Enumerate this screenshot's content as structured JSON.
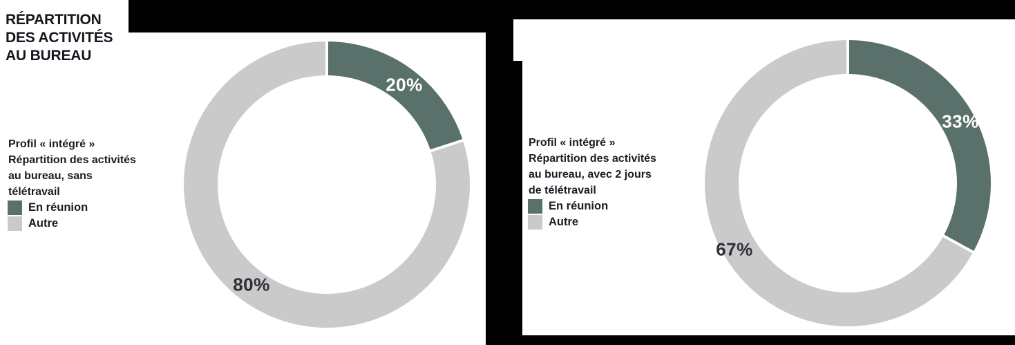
{
  "header": {
    "title_lines": [
      "RÉPARTITION",
      "DES ACTIVITÉS",
      "AU BUREAU"
    ]
  },
  "colors": {
    "meeting": "#59716A",
    "other": "#CACACA",
    "page_background": "#000000",
    "panel_background": "#FFFFFF",
    "heading_text": "#15151E",
    "caption_text": "#1B1B25",
    "value_label_light": "#FFFFFF",
    "value_label_dark": "#2E2E38"
  },
  "chart_data": [
    {
      "type": "pie",
      "subtype": "donut",
      "title_lines": [
        "Profil « intégré »",
        "Répartition des activités",
        "au bureau, sans",
        "télétravail"
      ],
      "categories": [
        "En réunion",
        "Autre"
      ],
      "legend": [
        "En réunion",
        "Autre"
      ],
      "values": [
        20,
        80
      ],
      "value_labels": [
        "20%",
        "80%"
      ],
      "segment_colors": [
        "#59716A",
        "#CACACA"
      ],
      "start_angle_deg": -90,
      "direction": "clockwise",
      "legend_position": "left"
    },
    {
      "type": "pie",
      "subtype": "donut",
      "title_lines": [
        "Profil « intégré »",
        "Répartition des activités",
        "au bureau, avec 2 jours",
        "de télétravail"
      ],
      "categories": [
        "En réunion",
        "Autre"
      ],
      "legend": [
        "En réunion",
        "Autre"
      ],
      "values": [
        33,
        67
      ],
      "value_labels": [
        "33%",
        "67%"
      ],
      "segment_colors": [
        "#59716A",
        "#CACACA"
      ],
      "start_angle_deg": -90,
      "direction": "clockwise",
      "legend_position": "left"
    }
  ]
}
